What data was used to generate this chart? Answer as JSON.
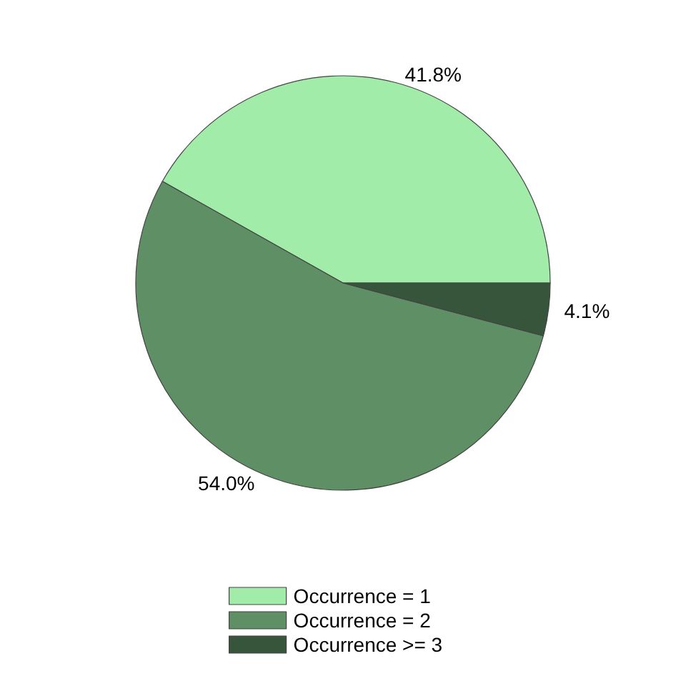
{
  "chart_data": {
    "type": "pie",
    "categories": [
      "Occurrence = 1",
      "Occurrence = 2",
      "Occurrence >= 3"
    ],
    "values": [
      41.8,
      54.0,
      4.1
    ],
    "colors": [
      "#a0eca8",
      "#5f8f65",
      "#37553b"
    ],
    "value_labels": [
      "41.8%",
      "54.0%",
      "4.1%"
    ],
    "legend": "bottom"
  }
}
